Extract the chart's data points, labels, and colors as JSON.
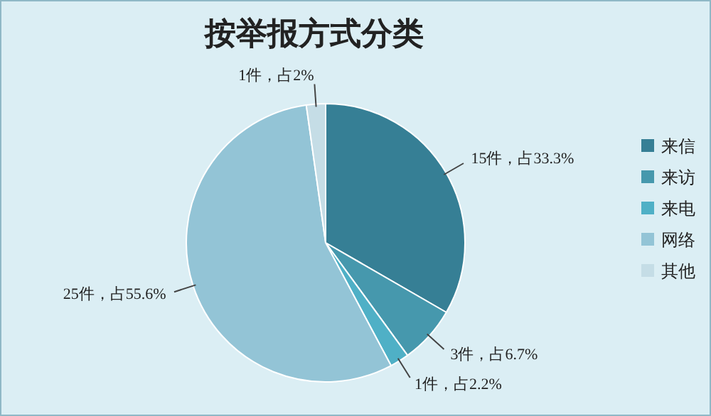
{
  "chart_data": {
    "type": "pie",
    "title": "按举报方式分类",
    "categories": [
      "来信",
      "来访",
      "来电",
      "网络",
      "其他"
    ],
    "values": [
      15,
      3,
      1,
      25,
      1
    ],
    "colors": [
      "#367f95",
      "#4698ad",
      "#4fb0c6",
      "#93c4d6",
      "#c5dde6"
    ],
    "value_labels": [
      "15件，占33.3%",
      "3件，占6.7%",
      "1件，占2.2%",
      "25件，占55.6%",
      "1件，占2%"
    ],
    "legend": "right"
  }
}
